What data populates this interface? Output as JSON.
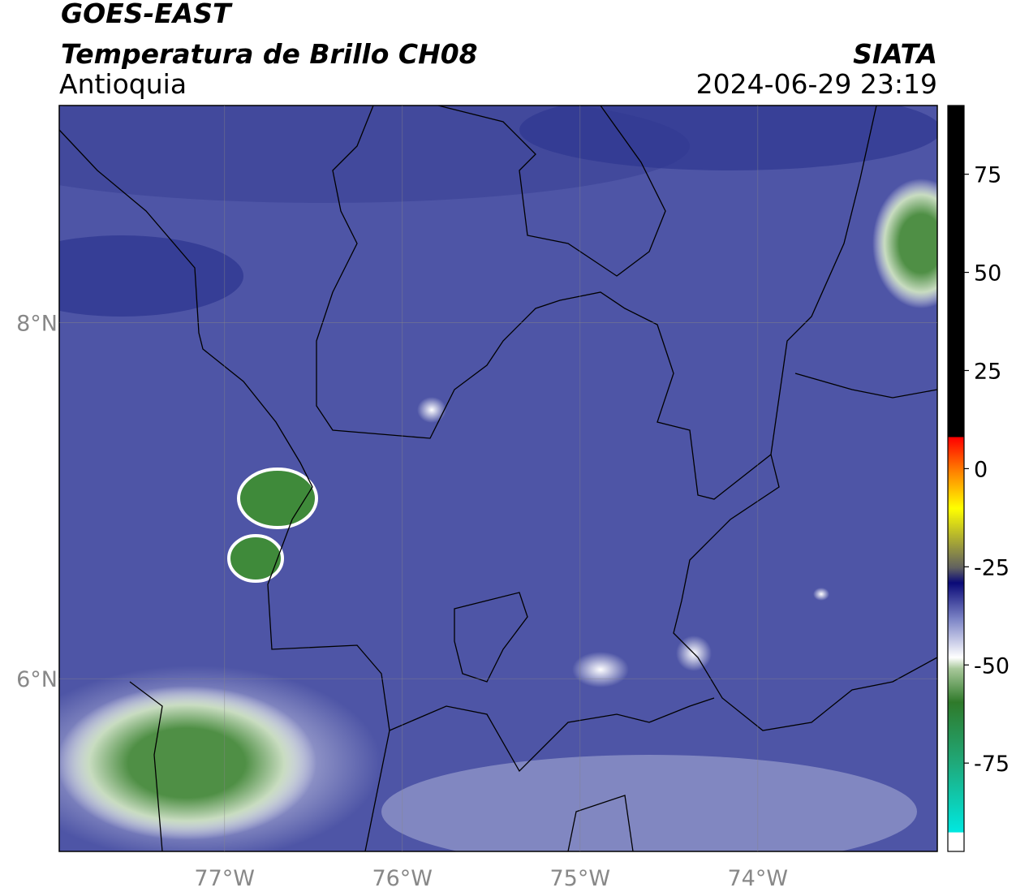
{
  "header": {
    "title": "GOES-EAST",
    "subtitle": "Temperatura de Brillo CH08",
    "region": "Antioquia",
    "source": "SIATA",
    "datetime": "2024-06-29 23:19"
  },
  "map": {
    "xlim": [
      -77.93,
      -72.99
    ],
    "ylim": [
      5.03,
      9.22
    ],
    "xticks": [
      {
        "value": -77,
        "label": "77°W"
      },
      {
        "value": -76,
        "label": "76°W"
      },
      {
        "value": -75,
        "label": "75°W"
      },
      {
        "value": -74,
        "label": "74°W"
      }
    ],
    "yticks": [
      {
        "value": 8,
        "label": "8°N"
      },
      {
        "value": 6,
        "label": "6°N"
      }
    ],
    "grid": true
  },
  "colorbar": {
    "lim": [
      -97.5,
      92.5
    ],
    "ticks": [
      75,
      50,
      25,
      0,
      -25,
      -50,
      -75
    ]
  }
}
